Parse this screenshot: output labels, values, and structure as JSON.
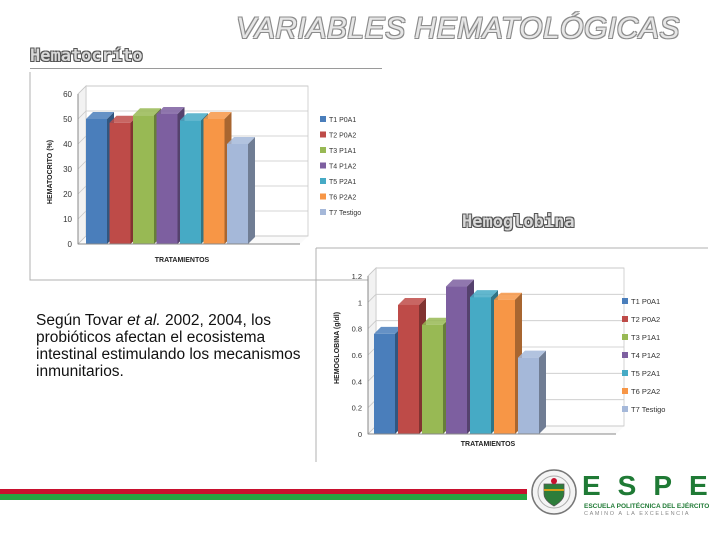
{
  "slide": {
    "title": "VARIABLES HEMATOLÓGICAS",
    "hematocrito_label": "Hematocríto",
    "hemoglobina_label": "Hemoglobina"
  },
  "body": {
    "text_before_italic": "Según Tovar ",
    "italic": "et al.",
    "text_after_italic": " 2002, 2004, los probióticos afectan el ecosistema intestinal estimulando los mecanismos inmunitarios."
  },
  "logo": {
    "wordmark": "ESPE",
    "subtitle": "ESCUELA POLITÉCNICA DEL EJÉRCITO",
    "tagline": "CAMINO A LA EXCELENCIA"
  },
  "chart_data": [
    {
      "type": "bar",
      "title": "",
      "xlabel": "TRATAMIENTOS",
      "ylabel": "HEMATOCRITO (%)",
      "ylim": [
        0,
        60
      ],
      "yticks": [
        "0",
        "10",
        "20",
        "30",
        "40",
        "50",
        "60"
      ],
      "grid": true,
      "legend_position": "right",
      "series": [
        {
          "name": "T1 P0A1",
          "value": 50,
          "color": "#4a7ebb"
        },
        {
          "name": "T2 P0A2",
          "value": 48.5,
          "color": "#be4b48"
        },
        {
          "name": "T3 P1A1",
          "value": 51.5,
          "color": "#98b954"
        },
        {
          "name": "T4 P1A2",
          "value": 52,
          "color": "#7d5fa0"
        },
        {
          "name": "T5 P2A1",
          "value": 49.5,
          "color": "#46aac5"
        },
        {
          "name": "T6 P2A2",
          "value": 50,
          "color": "#f79646"
        },
        {
          "name": "T7 Testigo",
          "value": 40,
          "color": "#a5b8d9"
        }
      ]
    },
    {
      "type": "bar",
      "title": "",
      "xlabel": "TRATAMIENTOS",
      "ylabel": "HEMOGLOBINA (g/dl)",
      "ylim": [
        0,
        1.2
      ],
      "yticks": [
        "0",
        "0.2",
        "0.4",
        "0.6",
        "0.8",
        "1",
        "1.2"
      ],
      "grid": true,
      "legend_position": "right",
      "series": [
        {
          "name": "T1 P0A1",
          "value": 0.76,
          "color": "#4a7ebb"
        },
        {
          "name": "T2 P0A2",
          "value": 0.98,
          "color": "#be4b48"
        },
        {
          "name": "T3 P1A1",
          "value": 0.83,
          "color": "#98b954"
        },
        {
          "name": "T4 P1A2",
          "value": 1.12,
          "color": "#7d5fa0"
        },
        {
          "name": "T5 P2A1",
          "value": 1.04,
          "color": "#46aac5"
        },
        {
          "name": "T6 P2A2",
          "value": 1.02,
          "color": "#f79646"
        },
        {
          "name": "T7 Testigo",
          "value": 0.58,
          "color": "#a5b8d9"
        }
      ]
    }
  ]
}
